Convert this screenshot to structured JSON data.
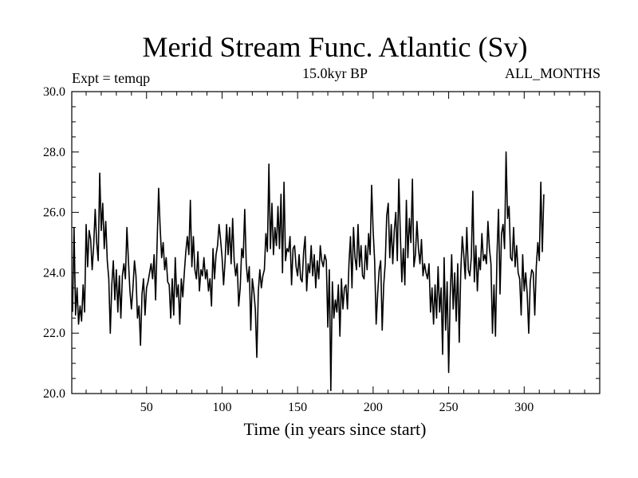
{
  "chart_data": {
    "type": "line",
    "title": "Merid Stream Func. Atlantic (Sv)",
    "subtitle": "15.0kyr BP",
    "left_annotation": "Expt = temqp",
    "right_annotation": "ALL_MONTHS",
    "xlabel": "Time (in years since start)",
    "ylabel": "",
    "xlim": [
      0.5,
      350
    ],
    "ylim": [
      20.0,
      30.0
    ],
    "x_ticks": [
      50,
      100,
      150,
      200,
      250,
      300
    ],
    "x_tick_labels": [
      "50",
      "100",
      "150",
      "200",
      "250",
      "300"
    ],
    "y_ticks": [
      20,
      22,
      24,
      26,
      28,
      30
    ],
    "y_tick_labels": [
      "20.0",
      "22.0",
      "24.0",
      "26.0",
      "28.0",
      "30.0"
    ],
    "x_start": 1,
    "x_step": 1,
    "values": [
      22.7,
      25.5,
      22.6,
      23.5,
      22.3,
      22.9,
      22.4,
      23.6,
      22.7,
      25.6,
      24.2,
      25.4,
      25.1,
      24.1,
      24.9,
      26.1,
      25.0,
      24.4,
      27.3,
      25.4,
      26.3,
      24.8,
      25.7,
      24.4,
      23.8,
      22.0,
      23.6,
      24.4,
      23.1,
      24.1,
      22.7,
      23.9,
      22.5,
      23.9,
      24.3,
      23.8,
      25.5,
      24.4,
      23.4,
      22.8,
      23.5,
      24.4,
      23.9,
      22.5,
      22.9,
      21.6,
      23.3,
      23.8,
      22.6,
      23.5,
      23.7,
      24.0,
      24.3,
      23.8,
      24.6,
      23.1,
      25.0,
      26.8,
      25.5,
      24.5,
      25.0,
      24.1,
      24.5,
      23.7,
      23.6,
      22.5,
      23.8,
      22.6,
      24.5,
      23.2,
      23.6,
      22.3,
      23.8,
      23.2,
      24.0,
      24.7,
      25.2,
      24.6,
      26.4,
      24.2,
      25.2,
      24.1,
      23.8,
      24.7,
      23.4,
      24.1,
      23.9,
      24.5,
      23.8,
      24.1,
      23.4,
      23.8,
      22.9,
      24.8,
      23.8,
      24.6,
      24.9,
      25.6,
      25.1,
      24.5,
      23.6,
      24.4,
      25.6,
      24.6,
      25.5,
      24.3,
      25.8,
      24.4,
      23.9,
      24.3,
      22.9,
      23.5,
      24.8,
      24.5,
      26.1,
      24.3,
      23.7,
      24.2,
      22.1,
      23.8,
      23.4,
      22.8,
      21.2,
      23.4,
      24.1,
      23.5,
      23.9,
      24.1,
      25.3,
      24.7,
      27.6,
      24.8,
      26.3,
      24.6,
      25.5,
      24.9,
      26.2,
      24.8,
      26.6,
      24.0,
      27.0,
      24.4,
      24.8,
      24.7,
      25.2,
      23.6,
      24.8,
      24.9,
      24.2,
      23.9,
      24.6,
      23.8,
      23.7,
      24.7,
      25.2,
      23.4,
      24.3,
      24.0,
      24.9,
      23.9,
      24.6,
      23.5,
      24.4,
      23.8,
      24.9,
      24.4,
      24.2,
      24.6,
      24.4,
      22.2,
      24.1,
      20.1,
      23.7,
      22.5,
      23.1,
      22.7,
      23.6,
      21.9,
      23.8,
      22.8,
      23.5,
      23.6,
      22.8,
      24.3,
      25.2,
      23.5,
      25.5,
      24.5,
      24.1,
      25.6,
      24.2,
      24.9,
      23.9,
      23.8,
      24.9,
      24.1,
      25.3,
      24.6,
      26.9,
      25.4,
      24.4,
      22.3,
      23.3,
      24.1,
      24.4,
      22.1,
      23.6,
      24.3,
      25.9,
      26.3,
      24.5,
      25.6,
      24.3,
      25.4,
      26.0,
      24.4,
      27.1,
      25.3,
      23.7,
      24.8,
      23.6,
      26.4,
      24.5,
      25.8,
      25.0,
      27.1,
      24.2,
      24.6,
      25.7,
      24.8,
      24.3,
      25.1,
      23.9,
      24.3,
      24.0,
      23.8,
      24.3,
      22.7,
      23.5,
      22.3,
      23.6,
      22.5,
      24.2,
      22.7,
      23.5,
      21.3,
      24.5,
      22.1,
      23.7,
      20.7,
      23.2,
      24.6,
      22.8,
      24.0,
      22.4,
      24.3,
      21.7,
      24.0,
      25.2,
      24.6,
      23.8,
      25.5,
      24.1,
      23.9,
      24.5,
      26.7,
      23.7,
      24.9,
      23.4,
      24.5,
      24.1,
      25.3,
      24.4,
      24.6,
      24.3,
      25.7,
      24.8,
      24.3,
      22.0,
      23.6,
      21.9,
      24.6,
      26.1,
      23.3,
      25.3,
      25.6,
      24.8,
      28.0,
      25.8,
      26.2,
      24.5,
      24.4,
      25.5,
      24.2,
      24.9,
      24.0,
      23.8,
      22.6,
      24.6,
      23.4,
      24.0,
      23.3,
      22.0,
      23.7,
      24.1,
      24.0,
      22.6,
      24.2,
      25.0,
      24.4,
      27.0,
      24.7,
      26.6
    ],
    "x_extended_note": ""
  }
}
